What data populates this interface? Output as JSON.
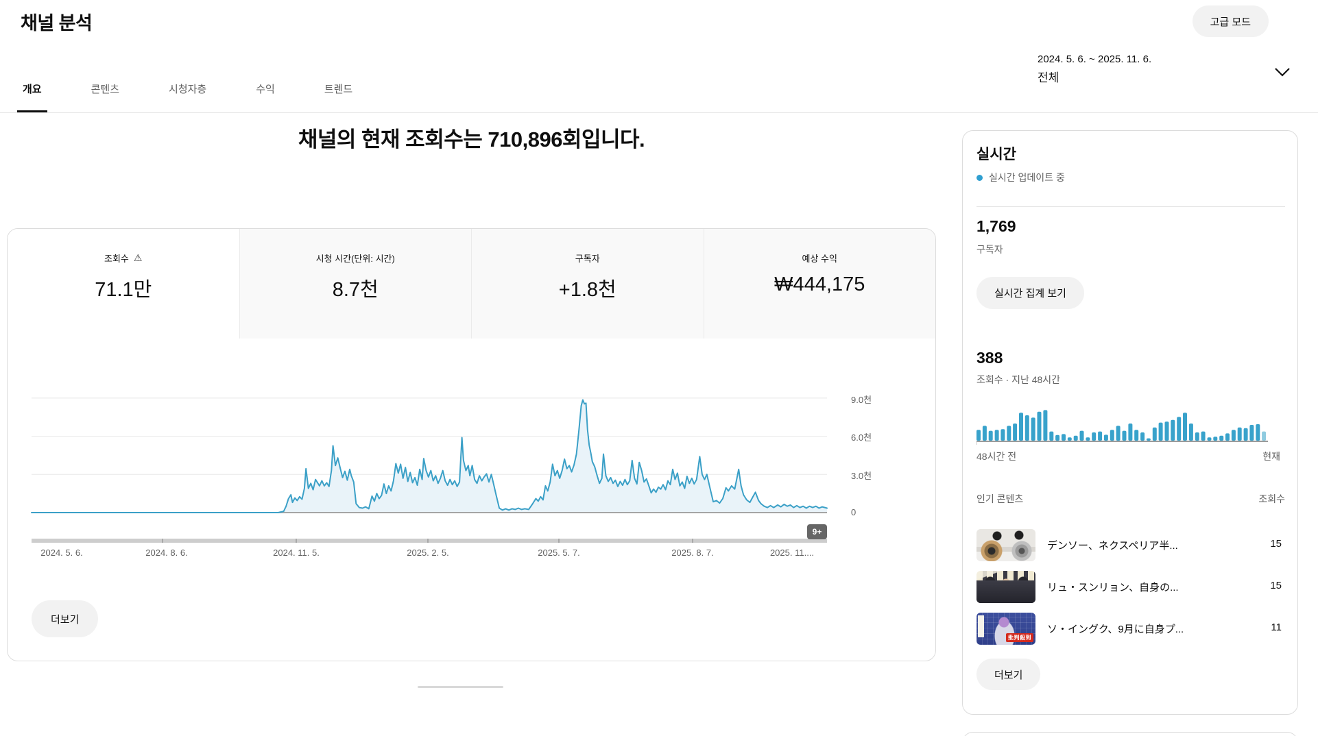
{
  "header": {
    "title": "채널 분석",
    "advanced_mode_label": "고급 모드"
  },
  "tabs": [
    {
      "label": "개요",
      "active": true
    },
    {
      "label": "콘텐츠",
      "active": false
    },
    {
      "label": "시청자층",
      "active": false
    },
    {
      "label": "수익",
      "active": false
    },
    {
      "label": "트렌드",
      "active": false
    }
  ],
  "date_filter": {
    "range": "2024. 5. 6. ~ 2025. 11. 6.",
    "preset": "전체"
  },
  "headline": "채널의 현재 조회수는 710,896회입니다.",
  "metric_cards": [
    {
      "label": "조회수",
      "value": "71.1만",
      "warning": true,
      "active": true
    },
    {
      "label": "시청 시간(단위: 시간)",
      "value": "8.7천",
      "warning": false,
      "active": false
    },
    {
      "label": "구독자",
      "value": "+1.8천",
      "warning": false,
      "active": false
    },
    {
      "label": "예상 수익",
      "value": "₩444,175",
      "warning": false,
      "active": false
    }
  ],
  "main_more_label": "더보기",
  "chart_data": [
    {
      "type": "area",
      "title": "조회수 (일별)",
      "x_range": [
        "2024-05-06",
        "2025-11-06"
      ],
      "x_tick_labels": [
        "2024. 5. 6.",
        "2024. 8. 6.",
        "2024. 11. 5.",
        "2025. 2. 5.",
        "2025. 5. 7.",
        "2025. 8. 7.",
        "2025. 11...."
      ],
      "y_tick_labels": [
        "9.0천",
        "6.0천",
        "3.0천",
        "0"
      ],
      "ylim": [
        0,
        9900
      ],
      "grid": true,
      "overflow_badge": "9+",
      "line_color": "#3ba0c7",
      "fill_color": "#e9f3f9",
      "points": [
        [
          0,
          0
        ],
        [
          0.1,
          0
        ],
        [
          0.2,
          0
        ],
        [
          0.31,
          0
        ],
        [
          0.317,
          100
        ],
        [
          0.32,
          500
        ],
        [
          0.323,
          1100
        ],
        [
          0.326,
          1400
        ],
        [
          0.328,
          800
        ],
        [
          0.331,
          1150
        ],
        [
          0.334,
          950
        ],
        [
          0.337,
          1250
        ],
        [
          0.34,
          1050
        ],
        [
          0.343,
          1900
        ],
        [
          0.345,
          3450
        ],
        [
          0.348,
          1900
        ],
        [
          0.351,
          2300
        ],
        [
          0.354,
          1800
        ],
        [
          0.357,
          2600
        ],
        [
          0.36,
          2300
        ],
        [
          0.362,
          2100
        ],
        [
          0.365,
          2500
        ],
        [
          0.368,
          2100
        ],
        [
          0.371,
          2350
        ],
        [
          0.374,
          2050
        ],
        [
          0.377,
          3300
        ],
        [
          0.379,
          5250
        ],
        [
          0.382,
          3700
        ],
        [
          0.385,
          4300
        ],
        [
          0.388,
          3500
        ],
        [
          0.391,
          2750
        ],
        [
          0.394,
          3250
        ],
        [
          0.397,
          2550
        ],
        [
          0.4,
          3400
        ],
        [
          0.402,
          2900
        ],
        [
          0.405,
          2400
        ],
        [
          0.408,
          700
        ],
        [
          0.412,
          400
        ],
        [
          0.416,
          350
        ],
        [
          0.42,
          450
        ],
        [
          0.424,
          300
        ],
        [
          0.428,
          1300
        ],
        [
          0.431,
          900
        ],
        [
          0.434,
          1500
        ],
        [
          0.437,
          1100
        ],
        [
          0.44,
          1350
        ],
        [
          0.443,
          2250
        ],
        [
          0.446,
          1500
        ],
        [
          0.449,
          2100
        ],
        [
          0.452,
          1700
        ],
        [
          0.455,
          2500
        ],
        [
          0.458,
          3850
        ],
        [
          0.461,
          3100
        ],
        [
          0.464,
          3800
        ],
        [
          0.467,
          2700
        ],
        [
          0.47,
          3550
        ],
        [
          0.473,
          2450
        ],
        [
          0.476,
          3150
        ],
        [
          0.479,
          2350
        ],
        [
          0.482,
          2750
        ],
        [
          0.485,
          2150
        ],
        [
          0.488,
          3400
        ],
        [
          0.491,
          2600
        ],
        [
          0.493,
          4250
        ],
        [
          0.496,
          3300
        ],
        [
          0.499,
          2800
        ],
        [
          0.502,
          3300
        ],
        [
          0.505,
          2500
        ],
        [
          0.508,
          2900
        ],
        [
          0.511,
          2300
        ],
        [
          0.514,
          2700
        ],
        [
          0.517,
          3300
        ],
        [
          0.52,
          2500
        ],
        [
          0.523,
          2150
        ],
        [
          0.526,
          2600
        ],
        [
          0.529,
          2200
        ],
        [
          0.532,
          2500
        ],
        [
          0.535,
          2050
        ],
        [
          0.538,
          2400
        ],
        [
          0.541,
          5900
        ],
        [
          0.543,
          4100
        ],
        [
          0.546,
          3300
        ],
        [
          0.549,
          3700
        ],
        [
          0.551,
          2900
        ],
        [
          0.554,
          3700
        ],
        [
          0.557,
          2600
        ],
        [
          0.56,
          2300
        ],
        [
          0.563,
          2900
        ],
        [
          0.566,
          2500
        ],
        [
          0.569,
          2800
        ],
        [
          0.572,
          3050
        ],
        [
          0.575,
          2400
        ],
        [
          0.578,
          3000
        ],
        [
          0.581,
          2200
        ],
        [
          0.584,
          1400
        ],
        [
          0.588,
          350
        ],
        [
          0.592,
          200
        ],
        [
          0.596,
          300
        ],
        [
          0.6,
          200
        ],
        [
          0.604,
          300
        ],
        [
          0.608,
          250
        ],
        [
          0.612,
          350
        ],
        [
          0.616,
          250
        ],
        [
          0.62,
          300
        ],
        [
          0.625,
          250
        ],
        [
          0.63,
          700
        ],
        [
          0.634,
          1100
        ],
        [
          0.637,
          900
        ],
        [
          0.64,
          1250
        ],
        [
          0.643,
          1000
        ],
        [
          0.646,
          2100
        ],
        [
          0.649,
          1700
        ],
        [
          0.652,
          2400
        ],
        [
          0.655,
          3800
        ],
        [
          0.658,
          2900
        ],
        [
          0.661,
          3300
        ],
        [
          0.664,
          2700
        ],
        [
          0.667,
          3300
        ],
        [
          0.67,
          4200
        ],
        [
          0.673,
          3450
        ],
        [
          0.676,
          3700
        ],
        [
          0.679,
          3200
        ],
        [
          0.682,
          3750
        ],
        [
          0.685,
          4600
        ],
        [
          0.688,
          6400
        ],
        [
          0.691,
          8400
        ],
        [
          0.693,
          8860
        ],
        [
          0.695,
          8550
        ],
        [
          0.697,
          8600
        ],
        [
          0.699,
          6500
        ],
        [
          0.701,
          5300
        ],
        [
          0.703,
          4700
        ],
        [
          0.705,
          4000
        ],
        [
          0.708,
          3600
        ],
        [
          0.711,
          2900
        ],
        [
          0.714,
          2300
        ],
        [
          0.717,
          2700
        ],
        [
          0.719,
          4600
        ],
        [
          0.722,
          2900
        ],
        [
          0.725,
          2450
        ],
        [
          0.728,
          2750
        ],
        [
          0.731,
          2300
        ],
        [
          0.734,
          2550
        ],
        [
          0.737,
          2050
        ],
        [
          0.74,
          2450
        ],
        [
          0.743,
          2150
        ],
        [
          0.746,
          2600
        ],
        [
          0.749,
          2200
        ],
        [
          0.752,
          2500
        ],
        [
          0.755,
          4100
        ],
        [
          0.758,
          2700
        ],
        [
          0.761,
          2250
        ],
        [
          0.764,
          3950
        ],
        [
          0.767,
          3300
        ],
        [
          0.77,
          2400
        ],
        [
          0.773,
          2650
        ],
        [
          0.776,
          2100
        ],
        [
          0.779,
          1550
        ],
        [
          0.782,
          1850
        ],
        [
          0.785,
          1600
        ],
        [
          0.788,
          2000
        ],
        [
          0.791,
          1850
        ],
        [
          0.794,
          2200
        ],
        [
          0.797,
          1800
        ],
        [
          0.8,
          2500
        ],
        [
          0.803,
          2200
        ],
        [
          0.806,
          3400
        ],
        [
          0.809,
          2600
        ],
        [
          0.812,
          3100
        ],
        [
          0.815,
          2100
        ],
        [
          0.818,
          2400
        ],
        [
          0.821,
          1900
        ],
        [
          0.824,
          2850
        ],
        [
          0.827,
          2300
        ],
        [
          0.83,
          2700
        ],
        [
          0.833,
          2250
        ],
        [
          0.836,
          2600
        ],
        [
          0.84,
          4400
        ],
        [
          0.843,
          3000
        ],
        [
          0.846,
          2600
        ],
        [
          0.849,
          3000
        ],
        [
          0.853,
          1900
        ],
        [
          0.857,
          850
        ],
        [
          0.861,
          950
        ],
        [
          0.865,
          750
        ],
        [
          0.869,
          1100
        ],
        [
          0.873,
          1950
        ],
        [
          0.876,
          1700
        ],
        [
          0.88,
          2100
        ],
        [
          0.884,
          1850
        ],
        [
          0.889,
          3400
        ],
        [
          0.892,
          2100
        ],
        [
          0.895,
          1400
        ],
        [
          0.899,
          1000
        ],
        [
          0.903,
          800
        ],
        [
          0.906,
          1150
        ],
        [
          0.91,
          1600
        ],
        [
          0.914,
          950
        ],
        [
          0.917,
          700
        ],
        [
          0.921,
          500
        ],
        [
          0.925,
          400
        ],
        [
          0.929,
          550
        ],
        [
          0.933,
          400
        ],
        [
          0.938,
          600
        ],
        [
          0.942,
          450
        ],
        [
          0.946,
          650
        ],
        [
          0.95,
          500
        ],
        [
          0.954,
          600
        ],
        [
          0.958,
          400
        ],
        [
          0.962,
          550
        ],
        [
          0.966,
          400
        ],
        [
          0.97,
          500
        ],
        [
          0.974,
          350
        ],
        [
          0.978,
          500
        ],
        [
          0.982,
          400
        ],
        [
          0.986,
          500
        ],
        [
          0.99,
          350
        ],
        [
          0.994,
          450
        ],
        [
          1,
          350
        ]
      ]
    },
    {
      "type": "bar",
      "title": "조회수 · 지난 48시간",
      "x_left_label": "48시간 전",
      "x_right_label": "현재",
      "bar_color": "#38a2cb",
      "last_bar_color": "#8ecbe0",
      "values": [
        33,
        45,
        30,
        33,
        35,
        45,
        52,
        85,
        77,
        70,
        88,
        93,
        28,
        17,
        20,
        10,
        15,
        30,
        10,
        25,
        28,
        18,
        33,
        45,
        30,
        52,
        33,
        25,
        7,
        40,
        55,
        58,
        63,
        72,
        85,
        52,
        25,
        28,
        10,
        12,
        15,
        22,
        33,
        40,
        38,
        48,
        50,
        28
      ]
    }
  ],
  "realtime": {
    "title": "실시간",
    "status": "실시간 업데이트 중",
    "subscribers": {
      "value": "1,769",
      "label": "구독자"
    },
    "live_count_label": "실시간 집계 보기",
    "views48": {
      "value": "388",
      "label": "조회수 · 지난 48시간"
    },
    "axis": {
      "left": "48시간 전",
      "right": "현재"
    },
    "top_content": {
      "title": "인기 콘텐츠",
      "views_label": "조회수",
      "items": [
        {
          "title": "デンソー、ネクスペリア半...",
          "views": "15"
        },
        {
          "title": "リュ・スンリョン、自身の...",
          "views": "15"
        },
        {
          "title": "ソ・イングク、9月に自身プ...",
          "views": "11",
          "overlay": "批判殺到"
        }
      ]
    },
    "more_label": "더보기"
  }
}
